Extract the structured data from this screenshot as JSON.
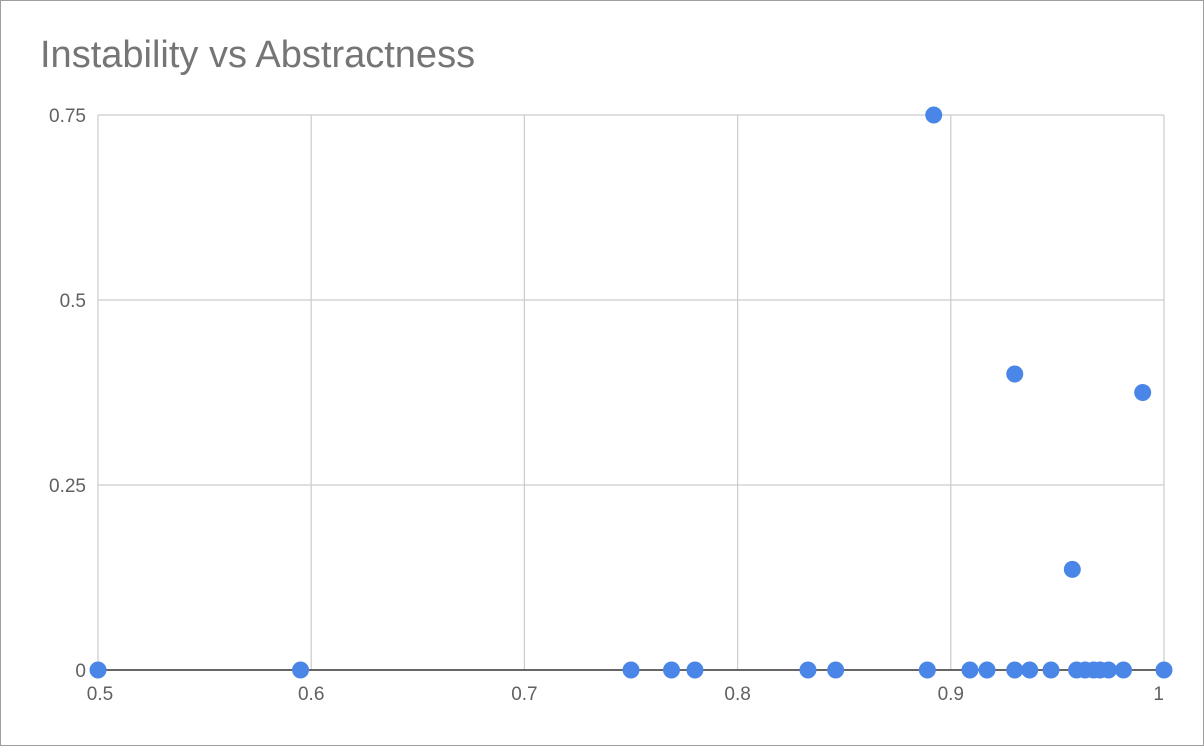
{
  "chart_data": {
    "type": "scatter",
    "title": "Instability vs Abstractness",
    "xlabel": "",
    "ylabel": "",
    "xlim": [
      0.5,
      1
    ],
    "ylim": [
      0,
      0.75
    ],
    "x_ticks": [
      {
        "value": 0.5,
        "label": "0.5"
      },
      {
        "value": 0.6,
        "label": "0.6"
      },
      {
        "value": 0.7,
        "label": "0.7"
      },
      {
        "value": 0.8,
        "label": "0.8"
      },
      {
        "value": 0.9,
        "label": "0.9"
      },
      {
        "value": 1.0,
        "label": "1"
      }
    ],
    "y_ticks": [
      {
        "value": 0,
        "label": "0"
      },
      {
        "value": 0.25,
        "label": "0.25"
      },
      {
        "value": 0.5,
        "label": "0.5"
      },
      {
        "value": 0.75,
        "label": "0.75"
      }
    ],
    "grid": true,
    "legend": "none",
    "point_color": "#4a86e8",
    "series": [
      {
        "points": [
          {
            "x": 0.5,
            "y": 0
          },
          {
            "x": 0.595,
            "y": 0
          },
          {
            "x": 0.75,
            "y": 0
          },
          {
            "x": 0.769,
            "y": 0
          },
          {
            "x": 0.78,
            "y": 0
          },
          {
            "x": 0.833,
            "y": 0
          },
          {
            "x": 0.846,
            "y": 0
          },
          {
            "x": 0.889,
            "y": 0
          },
          {
            "x": 0.892,
            "y": 0.75
          },
          {
            "x": 0.909,
            "y": 0
          },
          {
            "x": 0.917,
            "y": 0
          },
          {
            "x": 0.93,
            "y": 0
          },
          {
            "x": 0.93,
            "y": 0.4
          },
          {
            "x": 0.937,
            "y": 0
          },
          {
            "x": 0.947,
            "y": 0
          },
          {
            "x": 0.957,
            "y": 0.136
          },
          {
            "x": 0.959,
            "y": 0
          },
          {
            "x": 0.963,
            "y": 0
          },
          {
            "x": 0.967,
            "y": 0
          },
          {
            "x": 0.97,
            "y": 0
          },
          {
            "x": 0.974,
            "y": 0
          },
          {
            "x": 0.981,
            "y": 0
          },
          {
            "x": 0.99,
            "y": 0.375
          },
          {
            "x": 1.0,
            "y": 0
          }
        ]
      }
    ]
  }
}
